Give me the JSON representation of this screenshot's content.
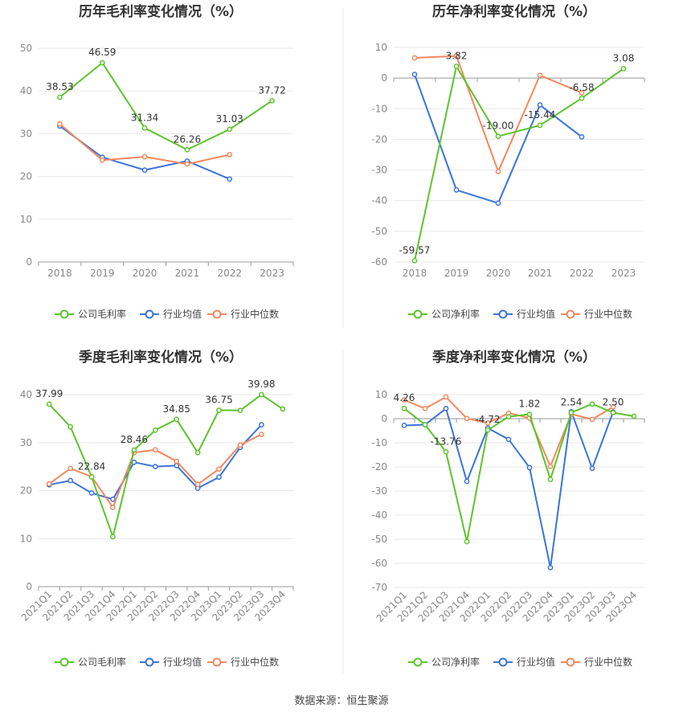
{
  "source_note": "数据来源：恒生聚源",
  "colors": {
    "company": "#5cc42c",
    "avg": "#3a74d9",
    "median": "#f4885e"
  },
  "chart_data": [
    {
      "type": "line",
      "title": "历年毛利率变化情况（%）",
      "categories": [
        "2018",
        "2019",
        "2020",
        "2021",
        "2022",
        "2023"
      ],
      "ylim": [
        0,
        50
      ],
      "yticks": [
        0,
        10,
        20,
        30,
        40,
        50
      ],
      "grid": true,
      "legend": "bottom",
      "series": [
        {
          "name": "公司毛利率",
          "color": "#5cc42c",
          "labels": true,
          "values": [
            38.53,
            46.59,
            31.34,
            26.26,
            31.03,
            37.72
          ]
        },
        {
          "name": "行业均值",
          "color": "#3a74d9",
          "labels": false,
          "values": [
            31.8,
            24.5,
            21.5,
            23.6,
            19.4,
            null
          ]
        },
        {
          "name": "行业中位数",
          "color": "#f4885e",
          "labels": false,
          "values": [
            32.3,
            23.8,
            24.6,
            22.9,
            25.1,
            null
          ]
        }
      ]
    },
    {
      "type": "line",
      "title": "历年净利率变化情况（%）",
      "categories": [
        "2018",
        "2019",
        "2020",
        "2021",
        "2022",
        "2023"
      ],
      "ylim": [
        -60,
        10
      ],
      "yticks": [
        -60,
        -50,
        -40,
        -30,
        -20,
        -10,
        0,
        10
      ],
      "grid": true,
      "legend": "bottom",
      "series": [
        {
          "name": "公司净利率",
          "color": "#5cc42c",
          "labels": true,
          "values": [
            -59.57,
            3.82,
            -19.0,
            -15.44,
            -6.58,
            3.08
          ]
        },
        {
          "name": "行业均值",
          "color": "#3a74d9",
          "labels": false,
          "values": [
            1.2,
            -36.5,
            -40.8,
            -8.8,
            -19.2,
            null
          ]
        },
        {
          "name": "行业中位数",
          "color": "#f4885e",
          "labels": false,
          "values": [
            6.6,
            7.2,
            -30.5,
            0.9,
            -4.8,
            null
          ]
        }
      ]
    },
    {
      "type": "line",
      "title": "季度毛利率变化情况（%）",
      "categories": [
        "2021Q1",
        "2021Q2",
        "2021Q3",
        "2021Q4",
        "2022Q1",
        "2022Q2",
        "2022Q3",
        "2022Q4",
        "2023Q1",
        "2023Q2",
        "2023Q3",
        "2023Q4"
      ],
      "ylim": [
        0,
        40
      ],
      "yticks": [
        0,
        10,
        20,
        30,
        40
      ],
      "grid": true,
      "legend": "bottom",
      "series": [
        {
          "name": "公司毛利率",
          "color": "#5cc42c",
          "labels": true,
          "label_indices": [
            0,
            2,
            4,
            6,
            8,
            10
          ],
          "values": [
            37.99,
            33.3,
            22.84,
            10.4,
            28.46,
            32.6,
            34.85,
            27.9,
            36.75,
            36.7,
            39.98,
            37.0
          ]
        },
        {
          "name": "行业均值",
          "color": "#3a74d9",
          "labels": false,
          "values": [
            21.2,
            22.1,
            19.5,
            18.2,
            25.9,
            25.0,
            25.2,
            20.5,
            22.8,
            29.0,
            33.7,
            null
          ]
        },
        {
          "name": "行业中位数",
          "color": "#f4885e",
          "labels": false,
          "values": [
            21.4,
            24.6,
            22.9,
            16.5,
            27.9,
            28.5,
            26.1,
            21.3,
            24.5,
            29.5,
            31.7,
            null
          ]
        }
      ]
    },
    {
      "type": "line",
      "title": "季度净利率变化情况（%）",
      "categories": [
        "2021Q1",
        "2021Q2",
        "2021Q3",
        "2021Q4",
        "2022Q1",
        "2022Q2",
        "2022Q3",
        "2022Q4",
        "2023Q1",
        "2023Q2",
        "2023Q3",
        "2023Q4"
      ],
      "ylim": [
        -70,
        10
      ],
      "yticks": [
        -70,
        -60,
        -50,
        -40,
        -30,
        -20,
        -10,
        0,
        10
      ],
      "grid": true,
      "legend": "bottom",
      "series": [
        {
          "name": "公司净利率",
          "color": "#5cc42c",
          "labels": true,
          "label_indices": [
            0,
            2,
            4,
            6,
            8,
            10
          ],
          "values": [
            4.26,
            -2.5,
            -13.76,
            -51.0,
            -4.72,
            0.8,
            1.82,
            -25.2,
            2.54,
            6.1,
            2.5,
            1.0
          ]
        },
        {
          "name": "行业均值",
          "color": "#3a74d9",
          "labels": false,
          "values": [
            -2.8,
            -2.5,
            4.2,
            -26.0,
            -3.9,
            -8.6,
            -20.3,
            -61.8,
            2.9,
            -20.6,
            2.8,
            null
          ]
        },
        {
          "name": "行业中位数",
          "color": "#f4885e",
          "labels": false,
          "values": [
            7.8,
            4.2,
            9.0,
            0.1,
            -1.8,
            2.3,
            0.3,
            -19.8,
            1.9,
            -0.3,
            4.9,
            null
          ]
        }
      ]
    }
  ]
}
